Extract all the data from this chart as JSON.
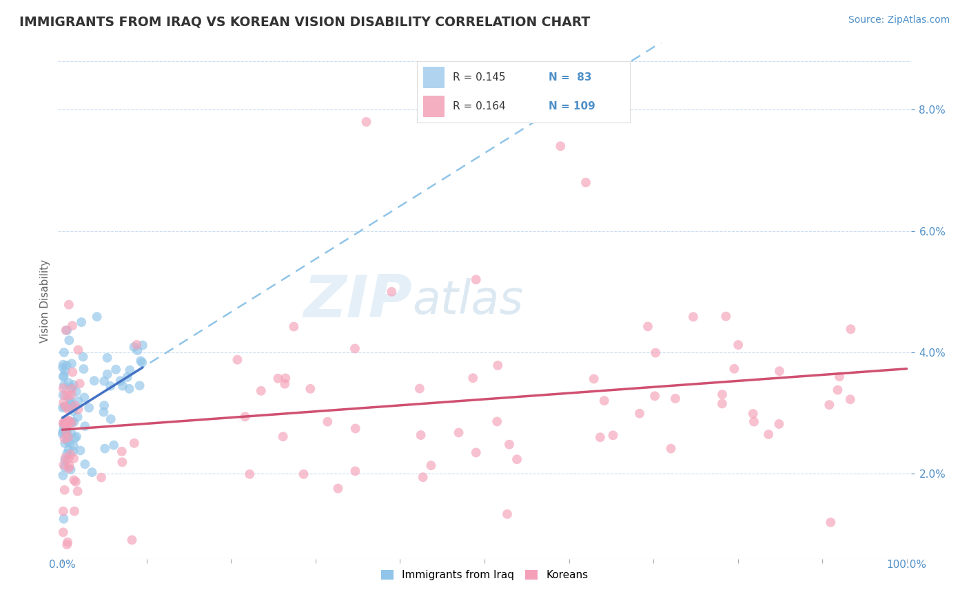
{
  "title": "IMMIGRANTS FROM IRAQ VS KOREAN VISION DISABILITY CORRELATION CHART",
  "source_text": "Source: ZipAtlas.com",
  "legend_label_iraq": "Immigrants from Iraq",
  "legend_label_korean": "Koreans",
  "ylabel": "Vision Disability",
  "r_iraq": 0.145,
  "n_iraq": 83,
  "r_korean": 0.164,
  "n_korean": 109,
  "xlim": [
    -0.005,
    1.005
  ],
  "ylim": [
    0.006,
    0.091
  ],
  "yticks": [
    0.02,
    0.04,
    0.06,
    0.08
  ],
  "ytick_labels": [
    "2.0%",
    "4.0%",
    "6.0%",
    "8.0%"
  ],
  "xtick_edge_left": "0.0%",
  "xtick_edge_right": "100.0%",
  "color_iraq": "#90C4E8",
  "color_korean": "#F4A0B8",
  "color_iraq_line": "#4472C4",
  "color_korean_line": "#D05070",
  "color_iraq_dashed": "#90C4E8",
  "background_color": "#FFFFFF",
  "grid_color": "#C8DCF0",
  "legend_box_color_iraq": "#B0D4F0",
  "legend_box_color_korean": "#F4B0C0",
  "watermark_zip_color": "#C8DCF0",
  "watermark_atlas_color": "#A0C8E0"
}
